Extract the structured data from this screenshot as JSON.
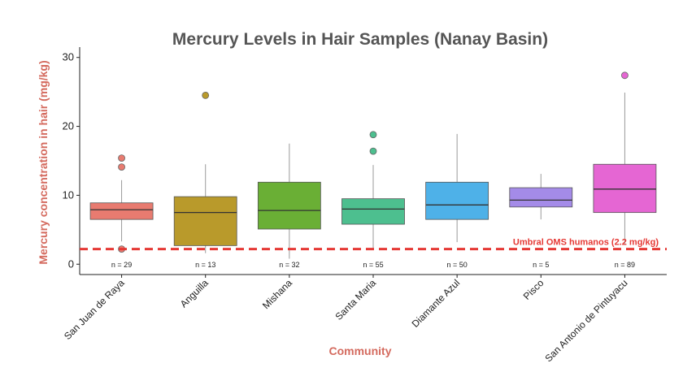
{
  "chart_data": {
    "type": "box",
    "title": "Mercury Levels in Hair Samples (Nanay Basin)",
    "xlabel": "Community",
    "ylabel": "Mercury concentration in hair (mg/kg)",
    "ylim": [
      -1.5,
      31.5
    ],
    "yticks": [
      0,
      10,
      20,
      30
    ],
    "grid": false,
    "label_color": "#d46a5e",
    "reference_line": {
      "value": 2.2,
      "label": "Umbral OMS humanos (2.2 mg/kg)",
      "color": "#e53935"
    },
    "categories": [
      "San Juan de Raya",
      "Anguilla",
      "Mishana",
      "Santa Maria",
      "Diamante Azul",
      "Pisco",
      "San Antonio de Pintuyacu"
    ],
    "boxes": [
      {
        "name": "San Juan de Raya",
        "n": "n = 29",
        "color": "#e87b70",
        "whisker_low": 3.3,
        "q1": 6.5,
        "median": 7.9,
        "q3": 8.9,
        "whisker_high": 12.2,
        "outliers": [
          2.2,
          14.1,
          15.4
        ]
      },
      {
        "name": "Anguilla",
        "n": "n = 13",
        "color": "#b99a2b",
        "whisker_low": 1.6,
        "q1": 2.7,
        "median": 7.5,
        "q3": 9.8,
        "whisker_high": 14.5,
        "outliers": [
          24.5
        ]
      },
      {
        "name": "Mishana",
        "n": "n = 32",
        "color": "#6aaf35",
        "whisker_low": 0.8,
        "q1": 5.1,
        "median": 7.8,
        "q3": 11.9,
        "whisker_high": 17.5,
        "outliers": []
      },
      {
        "name": "Santa Maria",
        "n": "n = 55",
        "color": "#4dbf8f",
        "whisker_low": 2.2,
        "q1": 5.8,
        "median": 8.0,
        "q3": 9.5,
        "whisker_high": 14.4,
        "outliers": [
          16.4,
          18.8
        ]
      },
      {
        "name": "Diamante Azul",
        "n": "n = 50",
        "color": "#4eb1e8",
        "whisker_low": 3.2,
        "q1": 6.5,
        "median": 8.6,
        "q3": 11.9,
        "whisker_high": 18.9,
        "outliers": []
      },
      {
        "name": "Pisco",
        "n": "n = 5",
        "color": "#a48be8",
        "whisker_low": 6.5,
        "q1": 8.3,
        "median": 9.3,
        "q3": 11.1,
        "whisker_high": 13.1,
        "outliers": []
      },
      {
        "name": "San Antonio de Pintuyacu",
        "n": "n = 89",
        "color": "#e566d3",
        "whisker_low": 2.8,
        "q1": 7.5,
        "median": 10.9,
        "q3": 14.5,
        "whisker_high": 24.9,
        "outliers": [
          27.4
        ]
      }
    ]
  }
}
